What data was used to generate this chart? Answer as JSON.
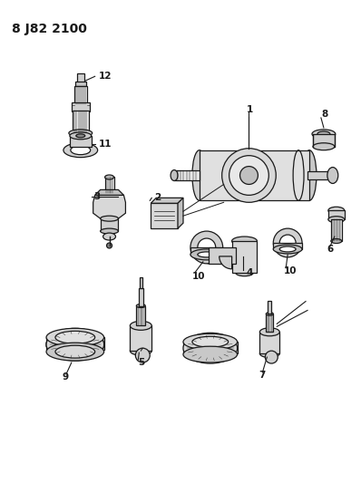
{
  "title": "8 J82 2100",
  "background_color": "#ffffff",
  "line_color": "#1a1a1a",
  "title_fontsize": 10,
  "label_fontsize": 7.5,
  "figsize": [
    3.98,
    5.33
  ],
  "dpi": 100
}
